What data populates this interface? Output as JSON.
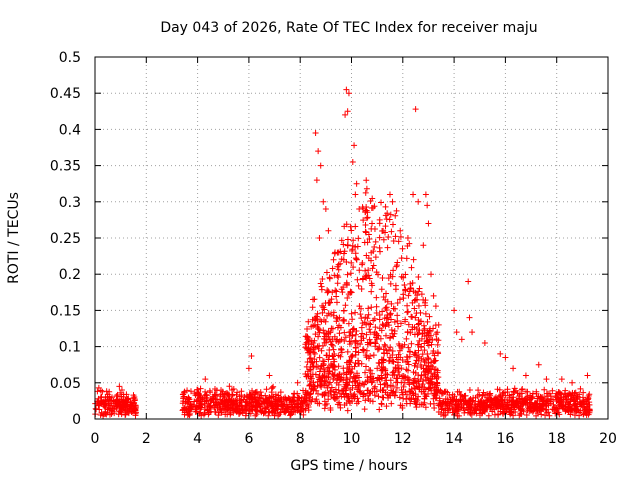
{
  "chart_data": {
    "type": "scatter",
    "title": "Day 043 of 2026, Rate Of TEC Index for receiver maju",
    "xlabel": "GPS time / hours",
    "ylabel": "ROTI / TECUs",
    "xlim": [
      0,
      20
    ],
    "ylim": [
      0,
      0.5
    ],
    "xticks": [
      0,
      2,
      4,
      6,
      8,
      10,
      12,
      14,
      16,
      18,
      20
    ],
    "yticks": [
      0,
      0.05,
      0.1,
      0.15,
      0.2,
      0.25,
      0.3,
      0.35,
      0.4,
      0.45,
      0.5
    ],
    "grid": true,
    "marker": "plus",
    "color": "#ff0000",
    "series": [
      {
        "name": "ROTI",
        "segments": [
          {
            "x_start": 0.0,
            "x_end": 1.6,
            "base": 0.02,
            "spread": 0.015
          },
          {
            "x_start": 3.4,
            "x_end": 8.2,
            "base": 0.02,
            "spread": 0.02
          },
          {
            "x_start": 8.2,
            "x_end": 13.4,
            "base": 0.06,
            "spread": 0.14
          },
          {
            "x_start": 13.4,
            "x_end": 19.3,
            "base": 0.02,
            "spread": 0.02
          }
        ],
        "points": [
          [
            0.15,
            0.043
          ],
          [
            0.95,
            0.045
          ],
          [
            1.05,
            0.04
          ],
          [
            4.3,
            0.055
          ],
          [
            5.1,
            0.035
          ],
          [
            6.1,
            0.087
          ],
          [
            6.0,
            0.07
          ],
          [
            6.8,
            0.06
          ],
          [
            7.9,
            0.05
          ],
          [
            8.5,
            0.165
          ],
          [
            8.6,
            0.395
          ],
          [
            8.7,
            0.37
          ],
          [
            8.8,
            0.35
          ],
          [
            8.65,
            0.33
          ],
          [
            8.9,
            0.3
          ],
          [
            9.0,
            0.29
          ],
          [
            9.1,
            0.26
          ],
          [
            8.75,
            0.25
          ],
          [
            9.3,
            0.22
          ],
          [
            9.5,
            0.23
          ],
          [
            9.8,
            0.455
          ],
          [
            9.9,
            0.45
          ],
          [
            9.85,
            0.425
          ],
          [
            9.75,
            0.42
          ],
          [
            10.1,
            0.378
          ],
          [
            10.05,
            0.355
          ],
          [
            10.2,
            0.325
          ],
          [
            10.15,
            0.31
          ],
          [
            10.3,
            0.29
          ],
          [
            10.6,
            0.318
          ],
          [
            10.8,
            0.27
          ],
          [
            11.1,
            0.275
          ],
          [
            11.5,
            0.31
          ],
          [
            11.6,
            0.3
          ],
          [
            11.9,
            0.26
          ],
          [
            12.2,
            0.25
          ],
          [
            12.5,
            0.428
          ],
          [
            12.4,
            0.31
          ],
          [
            12.6,
            0.3
          ],
          [
            12.9,
            0.31
          ],
          [
            12.95,
            0.295
          ],
          [
            13.0,
            0.27
          ],
          [
            12.8,
            0.24
          ],
          [
            13.1,
            0.2
          ],
          [
            13.2,
            0.17
          ],
          [
            13.4,
            0.13
          ],
          [
            14.0,
            0.15
          ],
          [
            14.1,
            0.12
          ],
          [
            14.3,
            0.11
          ],
          [
            14.55,
            0.19
          ],
          [
            14.6,
            0.14
          ],
          [
            14.7,
            0.12
          ],
          [
            15.2,
            0.105
          ],
          [
            15.8,
            0.09
          ],
          [
            16.0,
            0.085
          ],
          [
            16.3,
            0.07
          ],
          [
            16.8,
            0.06
          ],
          [
            17.3,
            0.075
          ],
          [
            17.6,
            0.055
          ],
          [
            18.2,
            0.055
          ],
          [
            18.6,
            0.05
          ],
          [
            19.2,
            0.06
          ]
        ]
      }
    ]
  }
}
